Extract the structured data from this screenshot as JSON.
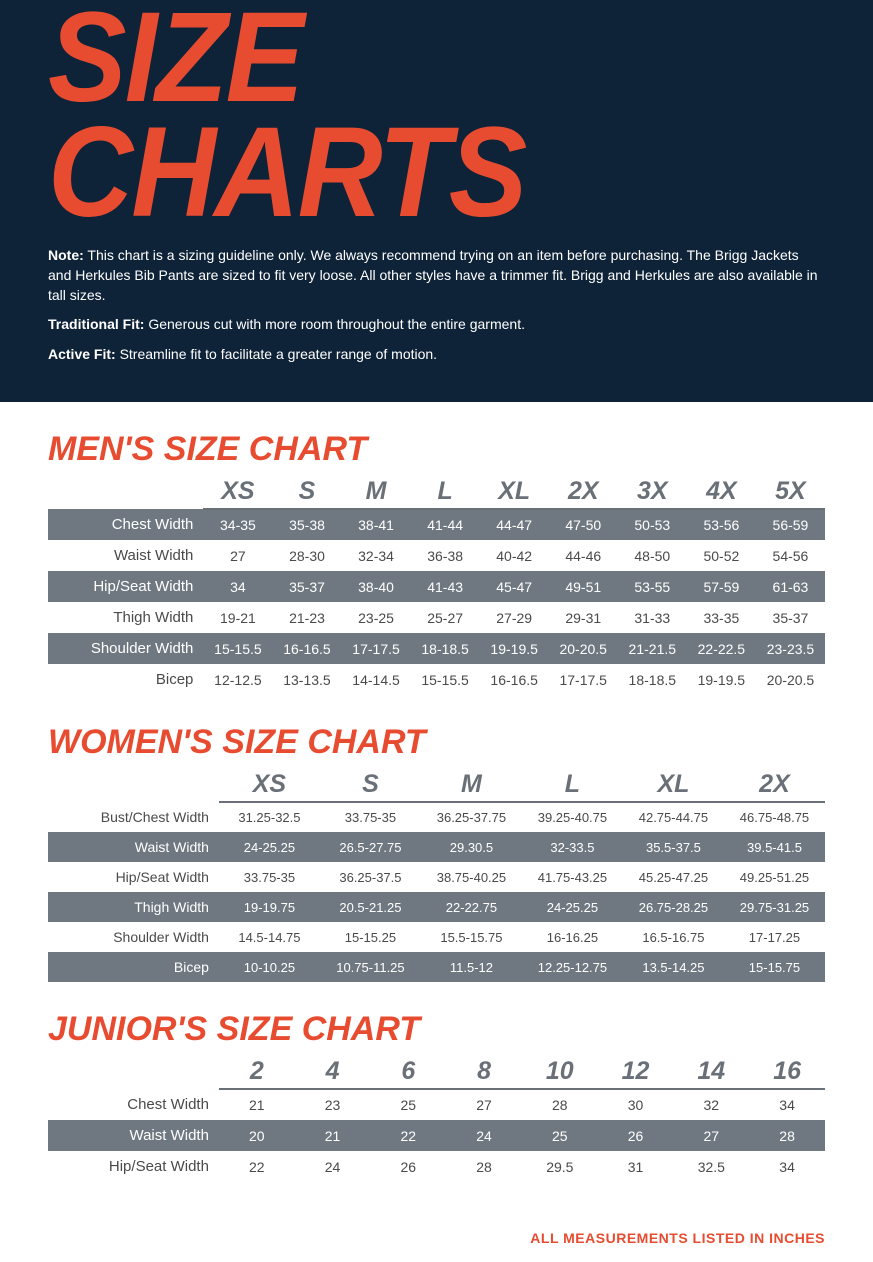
{
  "colors": {
    "accent": "#e84c30",
    "header_bg": "#0e2238",
    "header_text": "#ffffff",
    "th_text": "#6a7078",
    "th_border": "#6a7078",
    "row_shade_bg": "#6f7880",
    "row_shade_text": "#ffffff",
    "body_text": "#4a4a4a",
    "page_bg": "#ffffff"
  },
  "header": {
    "title": "SIZE CHARTS",
    "note_label": "Note:",
    "note_text": "This chart is a sizing guideline only. We always recommend trying on an item before purchasing. The Brigg Jackets and Herkules Bib Pants are sized to fit very loose. All other styles have a trimmer fit. Brigg and Herkules are also available in tall sizes.",
    "trad_label": "Traditional Fit:",
    "trad_text": "Generous cut with more room throughout the entire garment.",
    "active_label": "Active Fit:",
    "active_text": "Streamline fit to facilitate a greater range of motion."
  },
  "mens": {
    "title": "MEN'S SIZE CHART",
    "label_col_width": "20%",
    "columns": [
      "XS",
      "S",
      "M",
      "L",
      "XL",
      "2X",
      "3X",
      "4X",
      "5X"
    ],
    "rows": [
      {
        "label": "Chest Width",
        "shade": true,
        "vals": [
          "34-35",
          "35-38",
          "38-41",
          "41-44",
          "44-47",
          "47-50",
          "50-53",
          "53-56",
          "56-59"
        ]
      },
      {
        "label": "Waist Width",
        "shade": false,
        "vals": [
          "27",
          "28-30",
          "32-34",
          "36-38",
          "40-42",
          "44-46",
          "48-50",
          "50-52",
          "54-56"
        ]
      },
      {
        "label": "Hip/Seat Width",
        "shade": true,
        "vals": [
          "34",
          "35-37",
          "38-40",
          "41-43",
          "45-47",
          "49-51",
          "53-55",
          "57-59",
          "61-63"
        ]
      },
      {
        "label": "Thigh Width",
        "shade": false,
        "vals": [
          "19-21",
          "21-23",
          "23-25",
          "25-27",
          "27-29",
          "29-31",
          "31-33",
          "33-35",
          "35-37"
        ]
      },
      {
        "label": "Shoulder Width",
        "shade": true,
        "vals": [
          "15-15.5",
          "16-16.5",
          "17-17.5",
          "18-18.5",
          "19-19.5",
          "20-20.5",
          "21-21.5",
          "22-22.5",
          "23-23.5"
        ]
      },
      {
        "label": "Bicep",
        "shade": false,
        "vals": [
          "12-12.5",
          "13-13.5",
          "14-14.5",
          "15-15.5",
          "16-16.5",
          "17-17.5",
          "18-18.5",
          "19-19.5",
          "20-20.5"
        ]
      }
    ]
  },
  "womens": {
    "title": "WOMEN'S SIZE CHART",
    "label_col_width": "22%",
    "columns": [
      "XS",
      "S",
      "M",
      "L",
      "XL",
      "2X"
    ],
    "rows": [
      {
        "label": "Bust/Chest Width",
        "shade": false,
        "vals": [
          "31.25-32.5",
          "33.75-35",
          "36.25-37.75",
          "39.25-40.75",
          "42.75-44.75",
          "46.75-48.75"
        ]
      },
      {
        "label": "Waist Width",
        "shade": true,
        "vals": [
          "24-25.25",
          "26.5-27.75",
          "29.30.5",
          "32-33.5",
          "35.5-37.5",
          "39.5-41.5"
        ]
      },
      {
        "label": "Hip/Seat Width",
        "shade": false,
        "vals": [
          "33.75-35",
          "36.25-37.5",
          "38.75-40.25",
          "41.75-43.25",
          "45.25-47.25",
          "49.25-51.25"
        ]
      },
      {
        "label": "Thigh Width",
        "shade": true,
        "vals": [
          "19-19.75",
          "20.5-21.25",
          "22-22.75",
          "24-25.25",
          "26.75-28.25",
          "29.75-31.25"
        ]
      },
      {
        "label": "Shoulder Width",
        "shade": false,
        "vals": [
          "14.5-14.75",
          "15-15.25",
          "15.5-15.75",
          "16-16.25",
          "16.5-16.75",
          "17-17.25"
        ]
      },
      {
        "label": "Bicep",
        "shade": true,
        "vals": [
          "10-10.25",
          "10.75-11.25",
          "11.5-12",
          "12.25-12.75",
          "13.5-14.25",
          "15-15.75"
        ]
      }
    ]
  },
  "juniors": {
    "title": "JUNIOR'S SIZE CHART",
    "label_col_width": "22%",
    "columns": [
      "2",
      "4",
      "6",
      "8",
      "10",
      "12",
      "14",
      "16"
    ],
    "rows": [
      {
        "label": "Chest Width",
        "shade": false,
        "vals": [
          "21",
          "23",
          "25",
          "27",
          "28",
          "30",
          "32",
          "34"
        ]
      },
      {
        "label": "Waist Width",
        "shade": true,
        "vals": [
          "20",
          "21",
          "22",
          "24",
          "25",
          "26",
          "27",
          "28"
        ]
      },
      {
        "label": "Hip/Seat Width",
        "shade": false,
        "vals": [
          "22",
          "24",
          "26",
          "28",
          "29.5",
          "31",
          "32.5",
          "34"
        ]
      }
    ]
  },
  "footer": "ALL  MEASUREMENTS LISTED IN INCHES"
}
